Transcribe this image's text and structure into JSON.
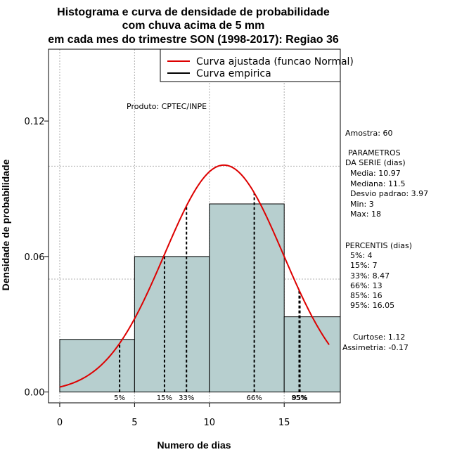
{
  "chart_data": {
    "type": "bar",
    "title_lines": [
      "Histograma e curva de densidade de probabilidade",
      "com chuva acima de 5 mm",
      "em cada mes do trimestre SON (1998-2017): Regiao 36"
    ],
    "xlabel": "Numero de dias",
    "ylabel": "Densidade de probabilidade",
    "xlim": [
      -0.75,
      18.75
    ],
    "ylim": [
      -0.0048,
      0.1518
    ],
    "x_ticks": [
      0,
      5,
      10,
      15
    ],
    "y_ticks": [
      0.0,
      0.06,
      0.12
    ],
    "y_tick_labels": [
      "0.00",
      "0.06",
      "0.12"
    ],
    "gridlines_x": [
      0,
      5,
      10,
      15
    ],
    "gridlines_y": [
      0.05,
      0.1
    ],
    "bins": [
      {
        "x0": 0,
        "x1": 5,
        "density": 0.0233
      },
      {
        "x0": 5,
        "x1": 10,
        "density": 0.06
      },
      {
        "x0": 10,
        "x1": 15,
        "density": 0.0833
      },
      {
        "x0": 15,
        "x1": 18.75,
        "density": 0.0333
      }
    ],
    "bar_color": "#b7cfcf",
    "curve_color": "#dd0000",
    "fitted_curve": {
      "distribution": "normal",
      "mean": 10.97,
      "sd": 3.97,
      "x_range": [
        0,
        18
      ]
    },
    "percentile_lines": [
      {
        "label": "5%",
        "x": 4
      },
      {
        "label": "15%",
        "x": 7
      },
      {
        "label": "33%",
        "x": 8.47
      },
      {
        "label": "66%",
        "x": 13
      },
      {
        "label": "85%",
        "x": 16
      },
      {
        "label": "95%",
        "x": 16.05
      }
    ],
    "legend": [
      {
        "label": "Curva ajustada (funcao Normal)",
        "color": "#dd0000"
      },
      {
        "label": "Curva empirica",
        "color": "#000000"
      }
    ],
    "product_text": "Produto: CPTEC/INPE",
    "side_panel": {
      "sample": "Amostra: 60",
      "params_title": [
        "PARAMETROS",
        "DA SERIE (dias)"
      ],
      "params": [
        "Media: 10.97",
        "Mediana: 11.5",
        "Desvio padrao: 3.97",
        "Min: 3",
        "Max: 18"
      ],
      "percentis_title": "PERCENTIS (dias)",
      "percentis": [
        "5%: 4",
        "15%: 7",
        "33%: 8.47",
        "66%: 13",
        "85%: 16",
        "95%: 16.05"
      ],
      "curtose": "Curtose: 1.12",
      "assimetria": "Assimetria: -0.17"
    }
  }
}
